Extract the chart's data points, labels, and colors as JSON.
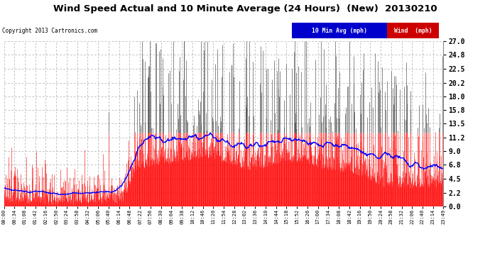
{
  "title": "Wind Speed Actual and 10 Minute Average (24 Hours)  (New)  20130210",
  "copyright": "Copyright 2013 Cartronics.com",
  "legend_avg_label": "10 Min Avg (mph)",
  "legend_wind_label": "Wind  (mph)",
  "ylim": [
    0.0,
    27.0
  ],
  "yticks": [
    0.0,
    2.2,
    4.5,
    6.8,
    9.0,
    11.2,
    13.5,
    15.8,
    18.0,
    20.2,
    22.5,
    24.8,
    27.0
  ],
  "bg_color": "#ffffff",
  "grid_color": "#aaaaaa",
  "wind_color": "#ff0000",
  "avg_color": "#0000ff",
  "spike_color": "#333333",
  "x_tick_labels": [
    "00:00",
    "00:34",
    "01:08",
    "01:42",
    "02:16",
    "02:50",
    "03:24",
    "03:58",
    "04:32",
    "05:06",
    "05:40",
    "06:14",
    "06:48",
    "07:22",
    "07:56",
    "08:30",
    "09:04",
    "09:38",
    "10:12",
    "10:46",
    "11:20",
    "11:54",
    "12:28",
    "13:02",
    "13:36",
    "14:10",
    "14:44",
    "15:18",
    "15:52",
    "16:26",
    "17:00",
    "17:34",
    "18:08",
    "18:42",
    "19:16",
    "19:50",
    "20:24",
    "20:58",
    "21:32",
    "22:06",
    "22:40",
    "23:14",
    "23:49"
  ],
  "n_points": 1440,
  "seed": 7
}
